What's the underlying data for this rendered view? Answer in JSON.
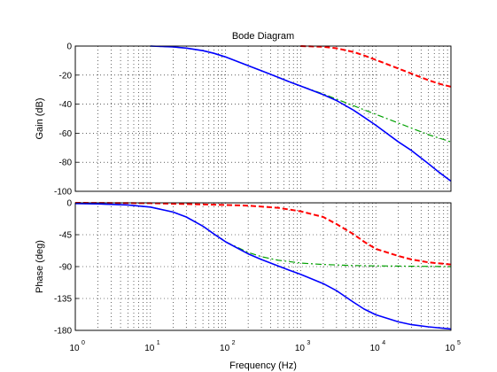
{
  "chart_data": [
    {
      "type": "line",
      "title": "Bode Diagram",
      "xlabel": "",
      "ylabel": "Gain (dB)",
      "xscale": "log",
      "xlim": [
        1,
        100000
      ],
      "ylim": [
        -100,
        0
      ],
      "yticks": [
        0,
        -20,
        -40,
        -60,
        -80,
        -100
      ],
      "grid": true,
      "series": [
        {
          "color": "#ff0000",
          "style": "dashed",
          "x": [
            1000,
            2000,
            3000,
            5000,
            7000,
            10000,
            20000,
            30000,
            50000,
            70000,
            100000
          ],
          "values": [
            0,
            -0.5,
            -1.5,
            -4,
            -6.5,
            -9.5,
            -15.5,
            -19,
            -23.5,
            -26,
            -28
          ]
        },
        {
          "color": "#00a000",
          "style": "dash-dot",
          "x": [
            10,
            20,
            30,
            50,
            70,
            100,
            200,
            300,
            500,
            700,
            1000,
            2000,
            3000,
            5000,
            10000,
            20000,
            50000,
            100000
          ],
          "values": [
            0,
            -0.6,
            -1.4,
            -3.2,
            -5,
            -7.5,
            -13.5,
            -17,
            -21.5,
            -24.5,
            -27.5,
            -33,
            -36.5,
            -41,
            -47,
            -53,
            -61,
            -66
          ]
        },
        {
          "color": "#0000ff",
          "style": "solid",
          "x": [
            10,
            20,
            30,
            50,
            70,
            100,
            200,
            300,
            500,
            700,
            1000,
            2000,
            3000,
            5000,
            7000,
            10000,
            20000,
            30000,
            50000,
            70000,
            100000
          ],
          "values": [
            0,
            -0.6,
            -1.4,
            -3.2,
            -5,
            -7.5,
            -13.5,
            -17,
            -21.5,
            -24.5,
            -27.5,
            -33.5,
            -37.5,
            -44,
            -49,
            -54.5,
            -66,
            -72,
            -81,
            -87,
            -93
          ]
        }
      ]
    },
    {
      "type": "line",
      "title": "",
      "xlabel": "Frequency  (Hz)",
      "ylabel": "Phase (deg)",
      "xscale": "log",
      "xlim": [
        1,
        100000
      ],
      "ylim": [
        -180,
        0
      ],
      "yticks": [
        0,
        -45,
        -90,
        -135,
        -180
      ],
      "xticks": [
        {
          "base": "10",
          "exp": "0"
        },
        {
          "base": "10",
          "exp": "1"
        },
        {
          "base": "10",
          "exp": "2"
        },
        {
          "base": "10",
          "exp": "3"
        },
        {
          "base": "10",
          "exp": "4"
        },
        {
          "base": "10",
          "exp": "5"
        }
      ],
      "grid": true,
      "series": [
        {
          "color": "#ff0000",
          "style": "dashed",
          "x": [
            1,
            10,
            100,
            200,
            500,
            1000,
            2000,
            3000,
            5000,
            7000,
            10000,
            20000,
            30000,
            50000,
            100000
          ],
          "values": [
            0,
            -0.5,
            -3,
            -4,
            -7,
            -12,
            -20,
            -30,
            -44,
            -55,
            -65,
            -75,
            -80,
            -84,
            -87
          ]
        },
        {
          "color": "#00a000",
          "style": "dash-dot",
          "x": [
            1,
            2,
            5,
            10,
            20,
            30,
            50,
            70,
            100,
            200,
            300,
            500,
            1000,
            2000,
            5000,
            10000,
            100000
          ],
          "values": [
            -1,
            -1.5,
            -3,
            -6,
            -13,
            -20,
            -33,
            -44,
            -55,
            -70,
            -76,
            -81,
            -85,
            -87,
            -88.5,
            -89,
            -90
          ]
        },
        {
          "color": "#0000ff",
          "style": "solid",
          "x": [
            1,
            2,
            5,
            10,
            20,
            30,
            50,
            70,
            100,
            200,
            300,
            500,
            700,
            1000,
            2000,
            3000,
            5000,
            7000,
            10000,
            20000,
            30000,
            50000,
            100000
          ],
          "values": [
            -1,
            -1.5,
            -3,
            -6,
            -13,
            -20,
            -33,
            -44,
            -55,
            -72,
            -80,
            -89,
            -95,
            -101,
            -114,
            -124,
            -140,
            -150,
            -158,
            -168,
            -172,
            -175,
            -178
          ]
        }
      ]
    }
  ]
}
